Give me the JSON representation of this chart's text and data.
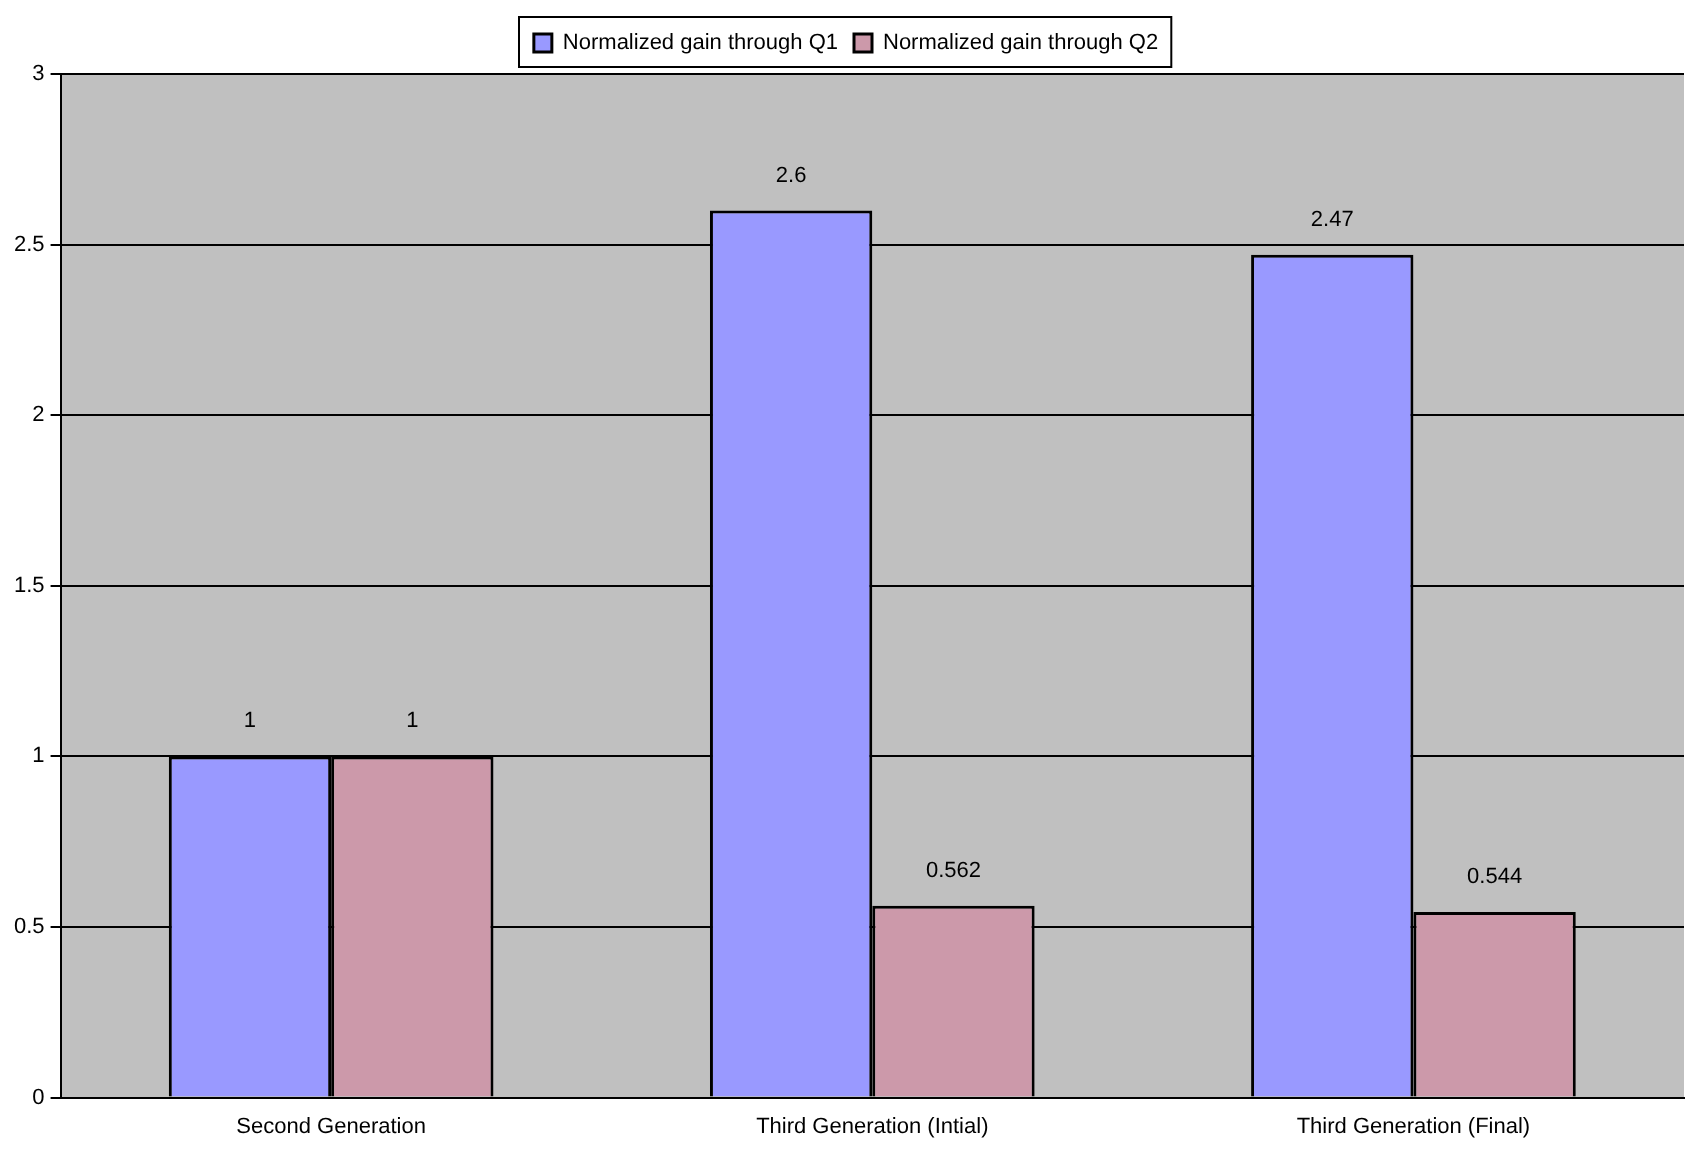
{
  "chart_data": {
    "type": "bar",
    "categories": [
      "Second Generation",
      "Third Generation (Intial)",
      "Third Generation (Final)"
    ],
    "series": [
      {
        "name": "Normalized gain through Q1",
        "color": "#9999ff",
        "values": [
          1,
          2.6,
          2.47
        ]
      },
      {
        "name": "Normalized gain through Q2",
        "color": "#cc99aa",
        "values": [
          1,
          0.562,
          0.544
        ]
      }
    ],
    "ylim": [
      0,
      3
    ],
    "yticks": [
      0,
      0.5,
      1,
      1.5,
      2,
      2.5,
      3
    ],
    "grid": "y",
    "legend": "top",
    "data_labels": true
  }
}
